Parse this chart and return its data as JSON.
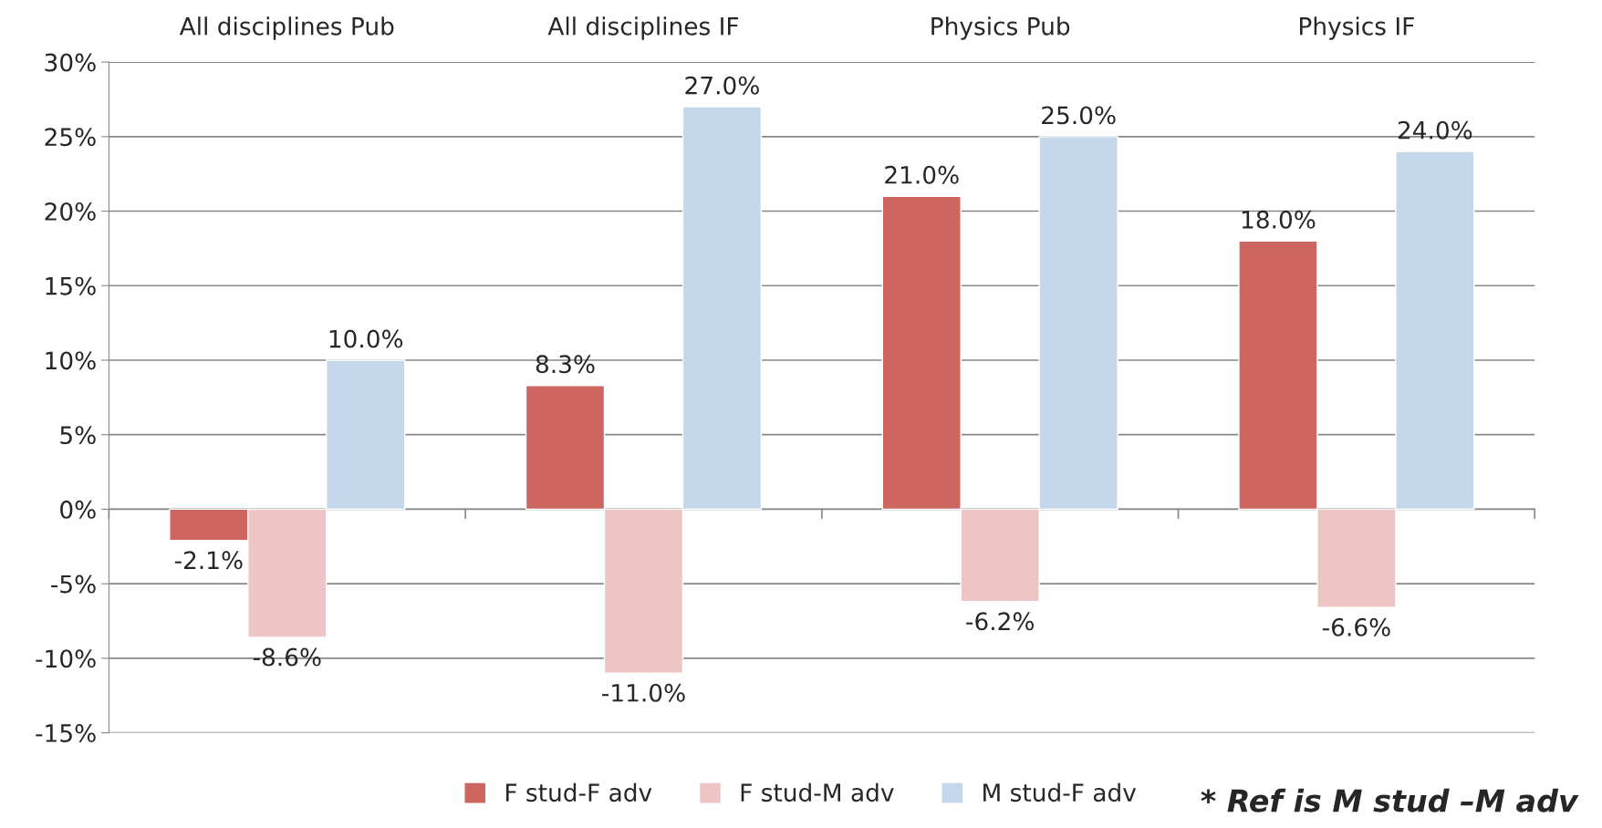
{
  "chart_data": {
    "type": "bar",
    "categories": [
      "All disciplines Pub",
      "All disciplines IF",
      "Physics Pub",
      "Physics IF"
    ],
    "series": [
      {
        "name": "F stud-F adv",
        "color": "#cd6660",
        "values": [
          -2.1,
          8.3,
          21.0,
          18.0
        ],
        "value_labels": [
          "-2.1%",
          "8.3%",
          "21.0%",
          "18.0%"
        ]
      },
      {
        "name": "F stud-M adv",
        "color": "#ecc5c4",
        "values": [
          -8.6,
          -11.0,
          -6.2,
          -6.6
        ],
        "value_labels": [
          "-8.6%",
          "-11.0%",
          "-6.2%",
          "-6.6%"
        ]
      },
      {
        "name": "M stud-F adv",
        "color": "#c5d7ea",
        "values": [
          10.0,
          27.0,
          25.0,
          24.0
        ],
        "value_labels": [
          "10.0%",
          "27.0%",
          "25.0%",
          "24.0%"
        ]
      }
    ],
    "ylim": [
      -15,
      30
    ],
    "yticks": [
      {
        "value": -15,
        "label": "-15%"
      },
      {
        "value": -10,
        "label": "-10%"
      },
      {
        "value": -5,
        "label": "-5%"
      },
      {
        "value": 0,
        "label": "0%"
      },
      {
        "value": 5,
        "label": "5%"
      },
      {
        "value": 10,
        "label": "10%"
      },
      {
        "value": 15,
        "label": "15%"
      },
      {
        "value": 20,
        "label": "20%"
      },
      {
        "value": 25,
        "label": "25%"
      },
      {
        "value": 30,
        "label": "30%"
      }
    ],
    "grid": "y",
    "legend": "bottom",
    "annotations": [
      "* Ref is M stud –M adv"
    ]
  }
}
